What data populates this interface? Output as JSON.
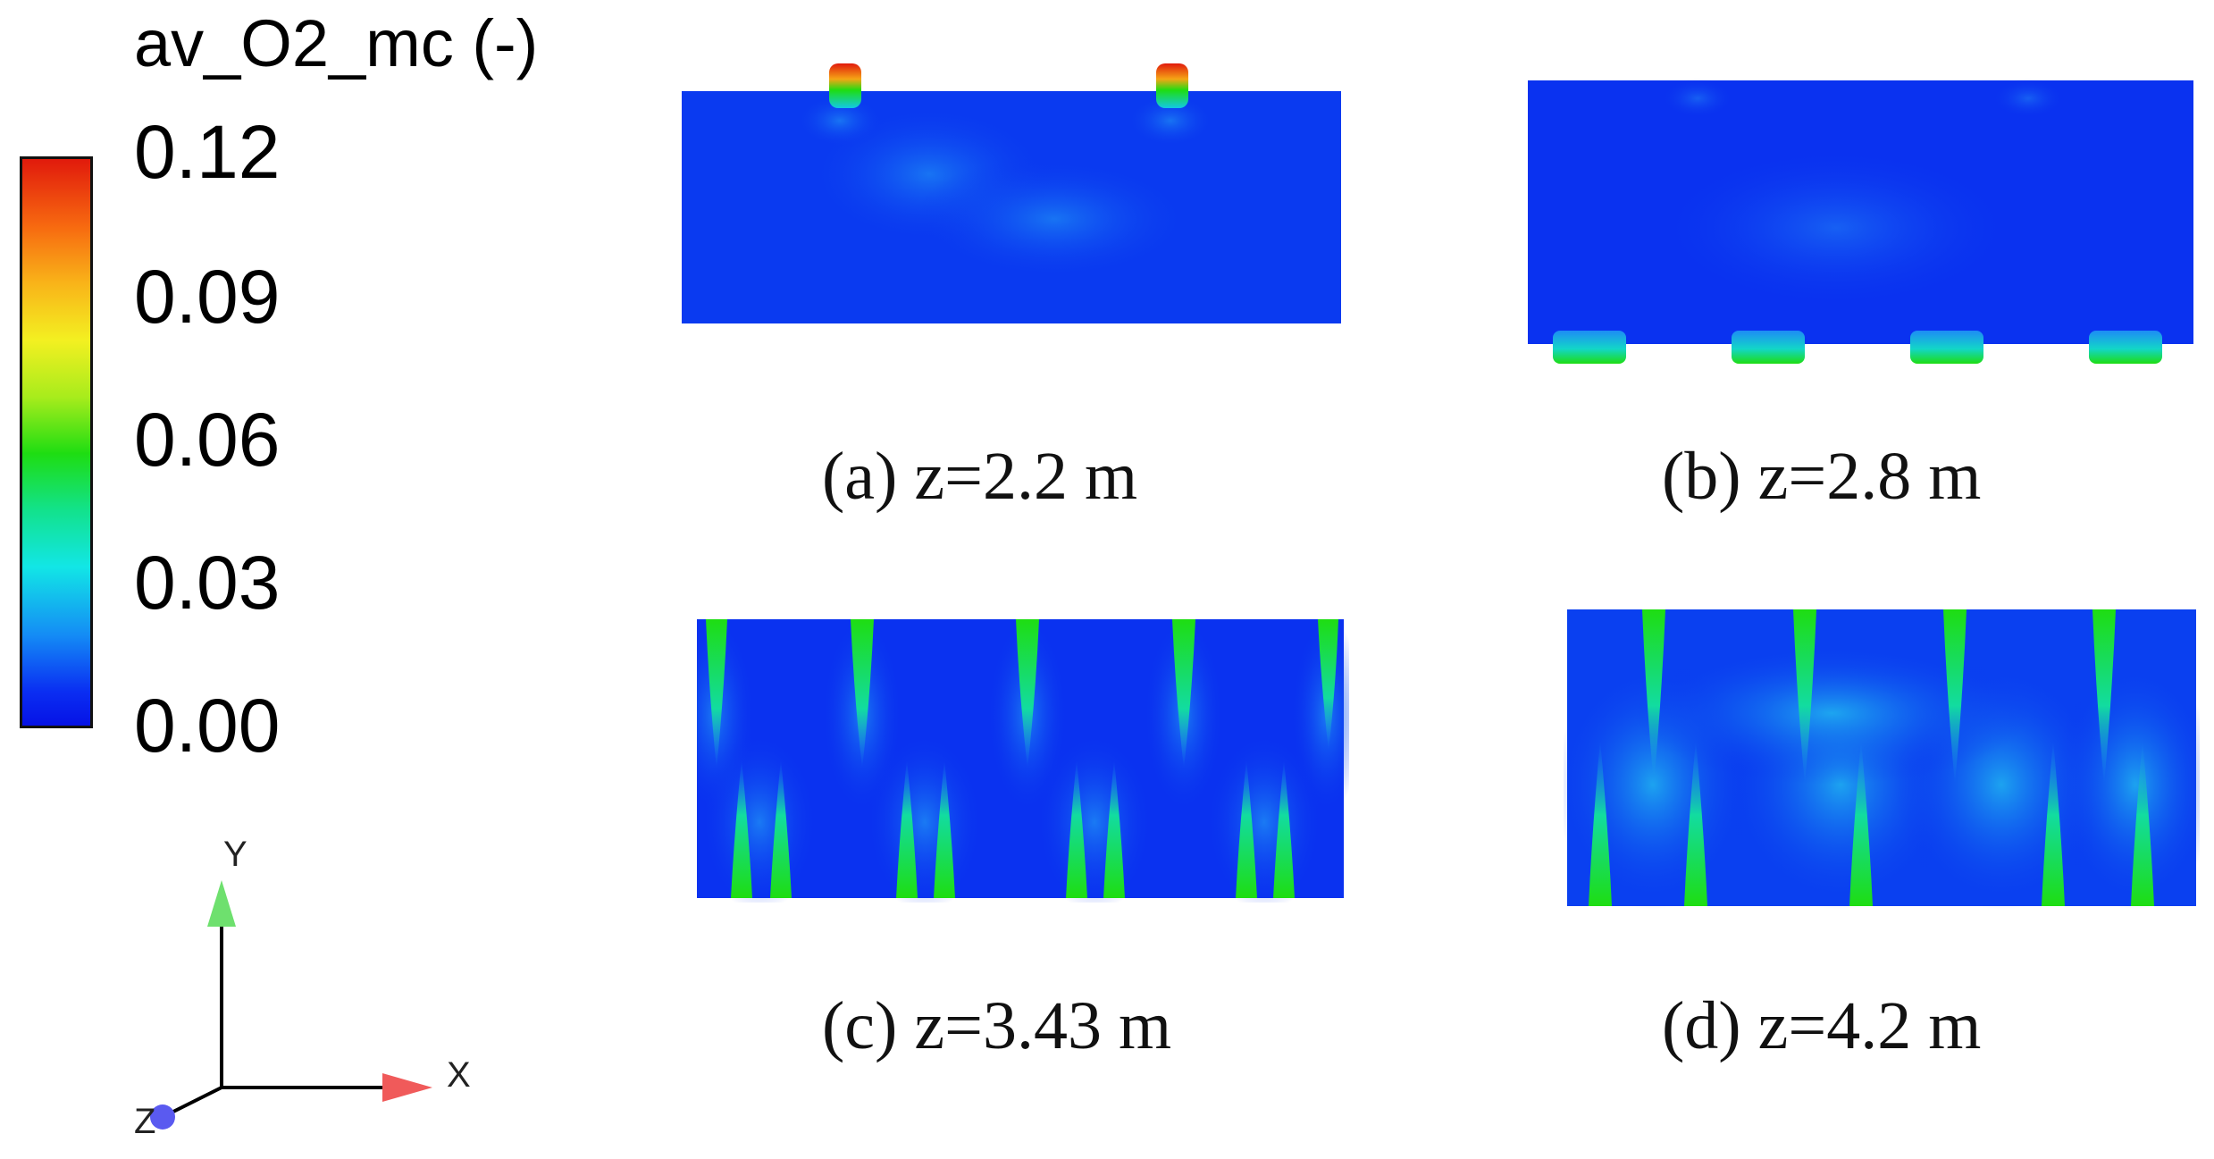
{
  "legend": {
    "title": "av_O2_mc (-)",
    "ticks": [
      "0.12",
      "0.09",
      "0.06",
      "0.03",
      "0.00"
    ]
  },
  "panels": [
    {
      "caption": "(a) z=2.2 m"
    },
    {
      "caption": "(b) z=2.8 m"
    },
    {
      "caption": "(c) z=3.43 m"
    },
    {
      "caption": "(d) z=4.2 m"
    }
  ],
  "triad": {
    "x": "X",
    "y": "Y",
    "z": "Z"
  },
  "colors": {
    "background": "#0a32f0",
    "jet": "#1ee018",
    "hot": "#e11a0c",
    "axis_x": "#f05a5a",
    "axis_y": "#6ee06e",
    "axis_z": "#5a5af0"
  }
}
